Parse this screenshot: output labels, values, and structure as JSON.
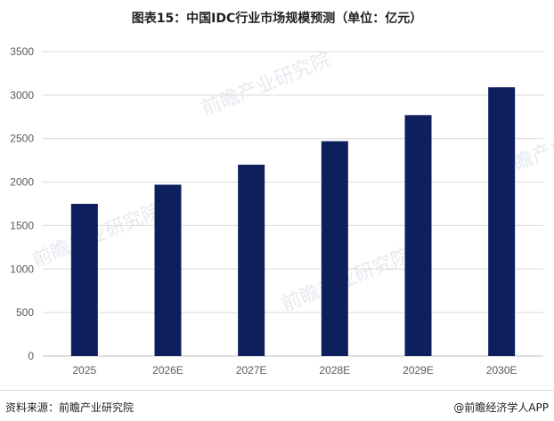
{
  "title": "图表15：中国IDC行业市场规模预测（单位：亿元）",
  "source": "资料来源：前瞻产业研究院",
  "brand": "@前瞻经济学人APP",
  "watermark": "前瞻产业研究院",
  "colors": {
    "bar": "#0d1f5c",
    "grid": "#d9d9d9",
    "axis": "#bfbfbf"
  },
  "chart_data": {
    "type": "bar",
    "categories": [
      "2025",
      "2026E",
      "2027E",
      "2028E",
      "2029E",
      "2030E"
    ],
    "values": [
      1750,
      1970,
      2200,
      2470,
      2770,
      3090
    ],
    "ylim": [
      0,
      3500
    ],
    "yticks": [
      0,
      500,
      1000,
      1500,
      2000,
      2500,
      3000,
      3500
    ],
    "grid": true,
    "legend": "none"
  }
}
